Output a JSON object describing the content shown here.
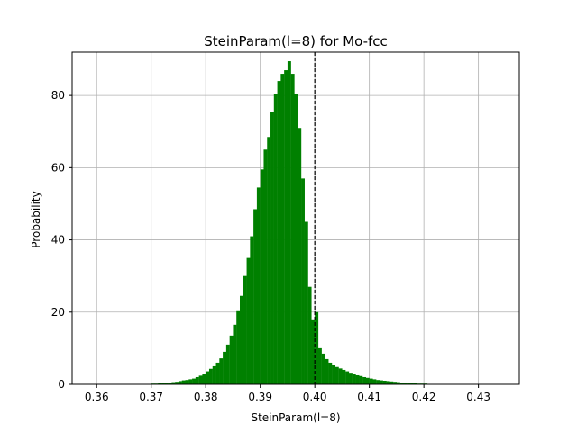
{
  "chart_data": {
    "type": "bar",
    "title": "SteinParam(l=8) for Mo-fcc",
    "xlabel": "SteinParam(l=8)",
    "ylabel": "Probability",
    "xlim": [
      0.3555,
      0.4375
    ],
    "ylim": [
      0,
      92
    ],
    "x_ticks": [
      0.36,
      0.37,
      0.38,
      0.39,
      0.4,
      0.41,
      0.42,
      0.43
    ],
    "x_tick_labels": [
      "0.36",
      "0.37",
      "0.38",
      "0.39",
      "0.40",
      "0.41",
      "0.42",
      "0.43"
    ],
    "y_ticks": [
      0,
      20,
      40,
      60,
      80
    ],
    "y_tick_labels": [
      "0",
      "20",
      "40",
      "60",
      "80"
    ],
    "grid": true,
    "bar_color": "#008000",
    "reference_line": {
      "x": 0.4,
      "style": "dashed",
      "color": "#000000"
    },
    "bin_start": 0.36,
    "bin_width": 0.000625,
    "values": [
      0.1,
      0.1,
      0.1,
      0.1,
      0.1,
      0.1,
      0.1,
      0.1,
      0.1,
      0.1,
      0.1,
      0.1,
      0.1,
      0.1,
      0.1,
      0.1,
      0.2,
      0.2,
      0.3,
      0.3,
      0.4,
      0.5,
      0.6,
      0.7,
      0.9,
      1.1,
      1.2,
      1.4,
      1.6,
      2.0,
      2.4,
      2.9,
      3.6,
      4.3,
      5.0,
      6.0,
      7.2,
      9.0,
      11.0,
      13.5,
      16.5,
      20.5,
      24.5,
      30.0,
      35.0,
      41.0,
      48.5,
      54.5,
      59.5,
      65.0,
      68.5,
      75.5,
      80.5,
      84.0,
      86.0,
      87.0,
      89.5,
      86.0,
      80.5,
      71.0,
      57.0,
      45.0,
      27.0,
      18.0,
      20.0,
      10.0,
      8.5,
      7.0,
      6.0,
      5.4,
      4.8,
      4.4,
      4.0,
      3.6,
      3.2,
      2.8,
      2.5,
      2.3,
      2.0,
      1.8,
      1.6,
      1.4,
      1.2,
      1.1,
      1.0,
      0.9,
      0.8,
      0.7,
      0.6,
      0.5,
      0.5,
      0.4,
      0.3,
      0.3,
      0.2,
      0.2,
      0.2,
      0.1,
      0.1,
      0.1,
      0.1,
      0.1,
      0.1,
      0.1,
      0.1,
      0.1,
      0.1,
      0.1,
      0.1,
      0.1,
      0.1,
      0.1
    ]
  }
}
